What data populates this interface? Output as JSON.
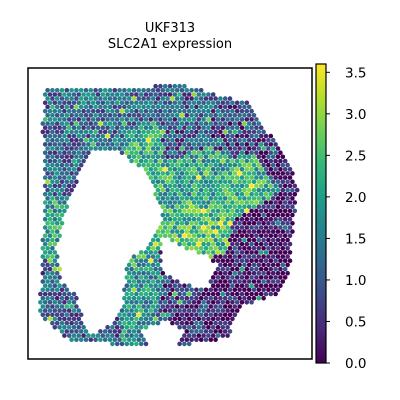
{
  "chart_data": {
    "type": "scatter",
    "title": "UKF313",
    "subtitle": "SLC2A1 expression",
    "xlabel": "",
    "ylabel": "",
    "colorbar": {
      "colormap": "viridis",
      "range": [
        0.0,
        3.6
      ],
      "ticks": [
        "0.0",
        "0.5",
        "1.0",
        "1.5",
        "2.0",
        "2.5",
        "3.0",
        "3.5"
      ]
    },
    "grid": false,
    "legend": "none",
    "series": [
      {
        "regions": [
          {
            "center": [
              0.15,
              0.3
            ],
            "radius": 0.12,
            "value": 1.2
          },
          {
            "center": [
              0.22,
              0.75
            ],
            "radius": 0.13,
            "value": 1.1
          },
          {
            "center": [
              0.3,
              0.62
            ],
            "radius": 0.1,
            "value": 2.2
          },
          {
            "center": [
              0.4,
              0.78
            ],
            "radius": 0.1,
            "value": 1.8
          },
          {
            "center": [
              0.55,
              0.8
            ],
            "radius": 0.12,
            "value": 0.6
          },
          {
            "center": [
              0.7,
              0.78
            ],
            "radius": 0.12,
            "value": 0.2
          },
          {
            "center": [
              0.85,
              0.6
            ],
            "radius": 0.12,
            "value": 0.1
          },
          {
            "center": [
              0.6,
              0.55
            ],
            "radius": 0.1,
            "value": 2.4
          },
          {
            "center": [
              0.62,
              0.38
            ],
            "radius": 0.1,
            "value": 2.0
          },
          {
            "center": [
              0.75,
              0.4
            ],
            "radius": 0.09,
            "value": 2.3
          },
          {
            "center": [
              0.5,
              0.4
            ],
            "radius": 0.07,
            "value": 2.1
          },
          {
            "center": [
              0.3,
              0.12
            ],
            "radius": 0.1,
            "value": 1.3
          },
          {
            "center": [
              0.55,
              0.2
            ],
            "radius": 0.1,
            "value": 1.0
          },
          {
            "center": [
              0.42,
              0.25
            ],
            "radius": 0.06,
            "value": 2.2
          },
          {
            "center": [
              0.72,
              0.22
            ],
            "radius": 0.08,
            "value": 0.8
          },
          {
            "center": [
              0.9,
              0.3
            ],
            "radius": 0.08,
            "value": 0.4
          },
          {
            "center": [
              0.1,
              0.55
            ],
            "radius": 0.08,
            "value": 2.0
          }
        ]
      }
    ]
  },
  "colors": {
    "viridis": [
      "#440154",
      "#482878",
      "#3e4989",
      "#31688e",
      "#26828e",
      "#1f9e89",
      "#35b779",
      "#6ece58",
      "#b5de2b",
      "#fde725"
    ],
    "frame": "#000000",
    "background": "#ffffff"
  }
}
